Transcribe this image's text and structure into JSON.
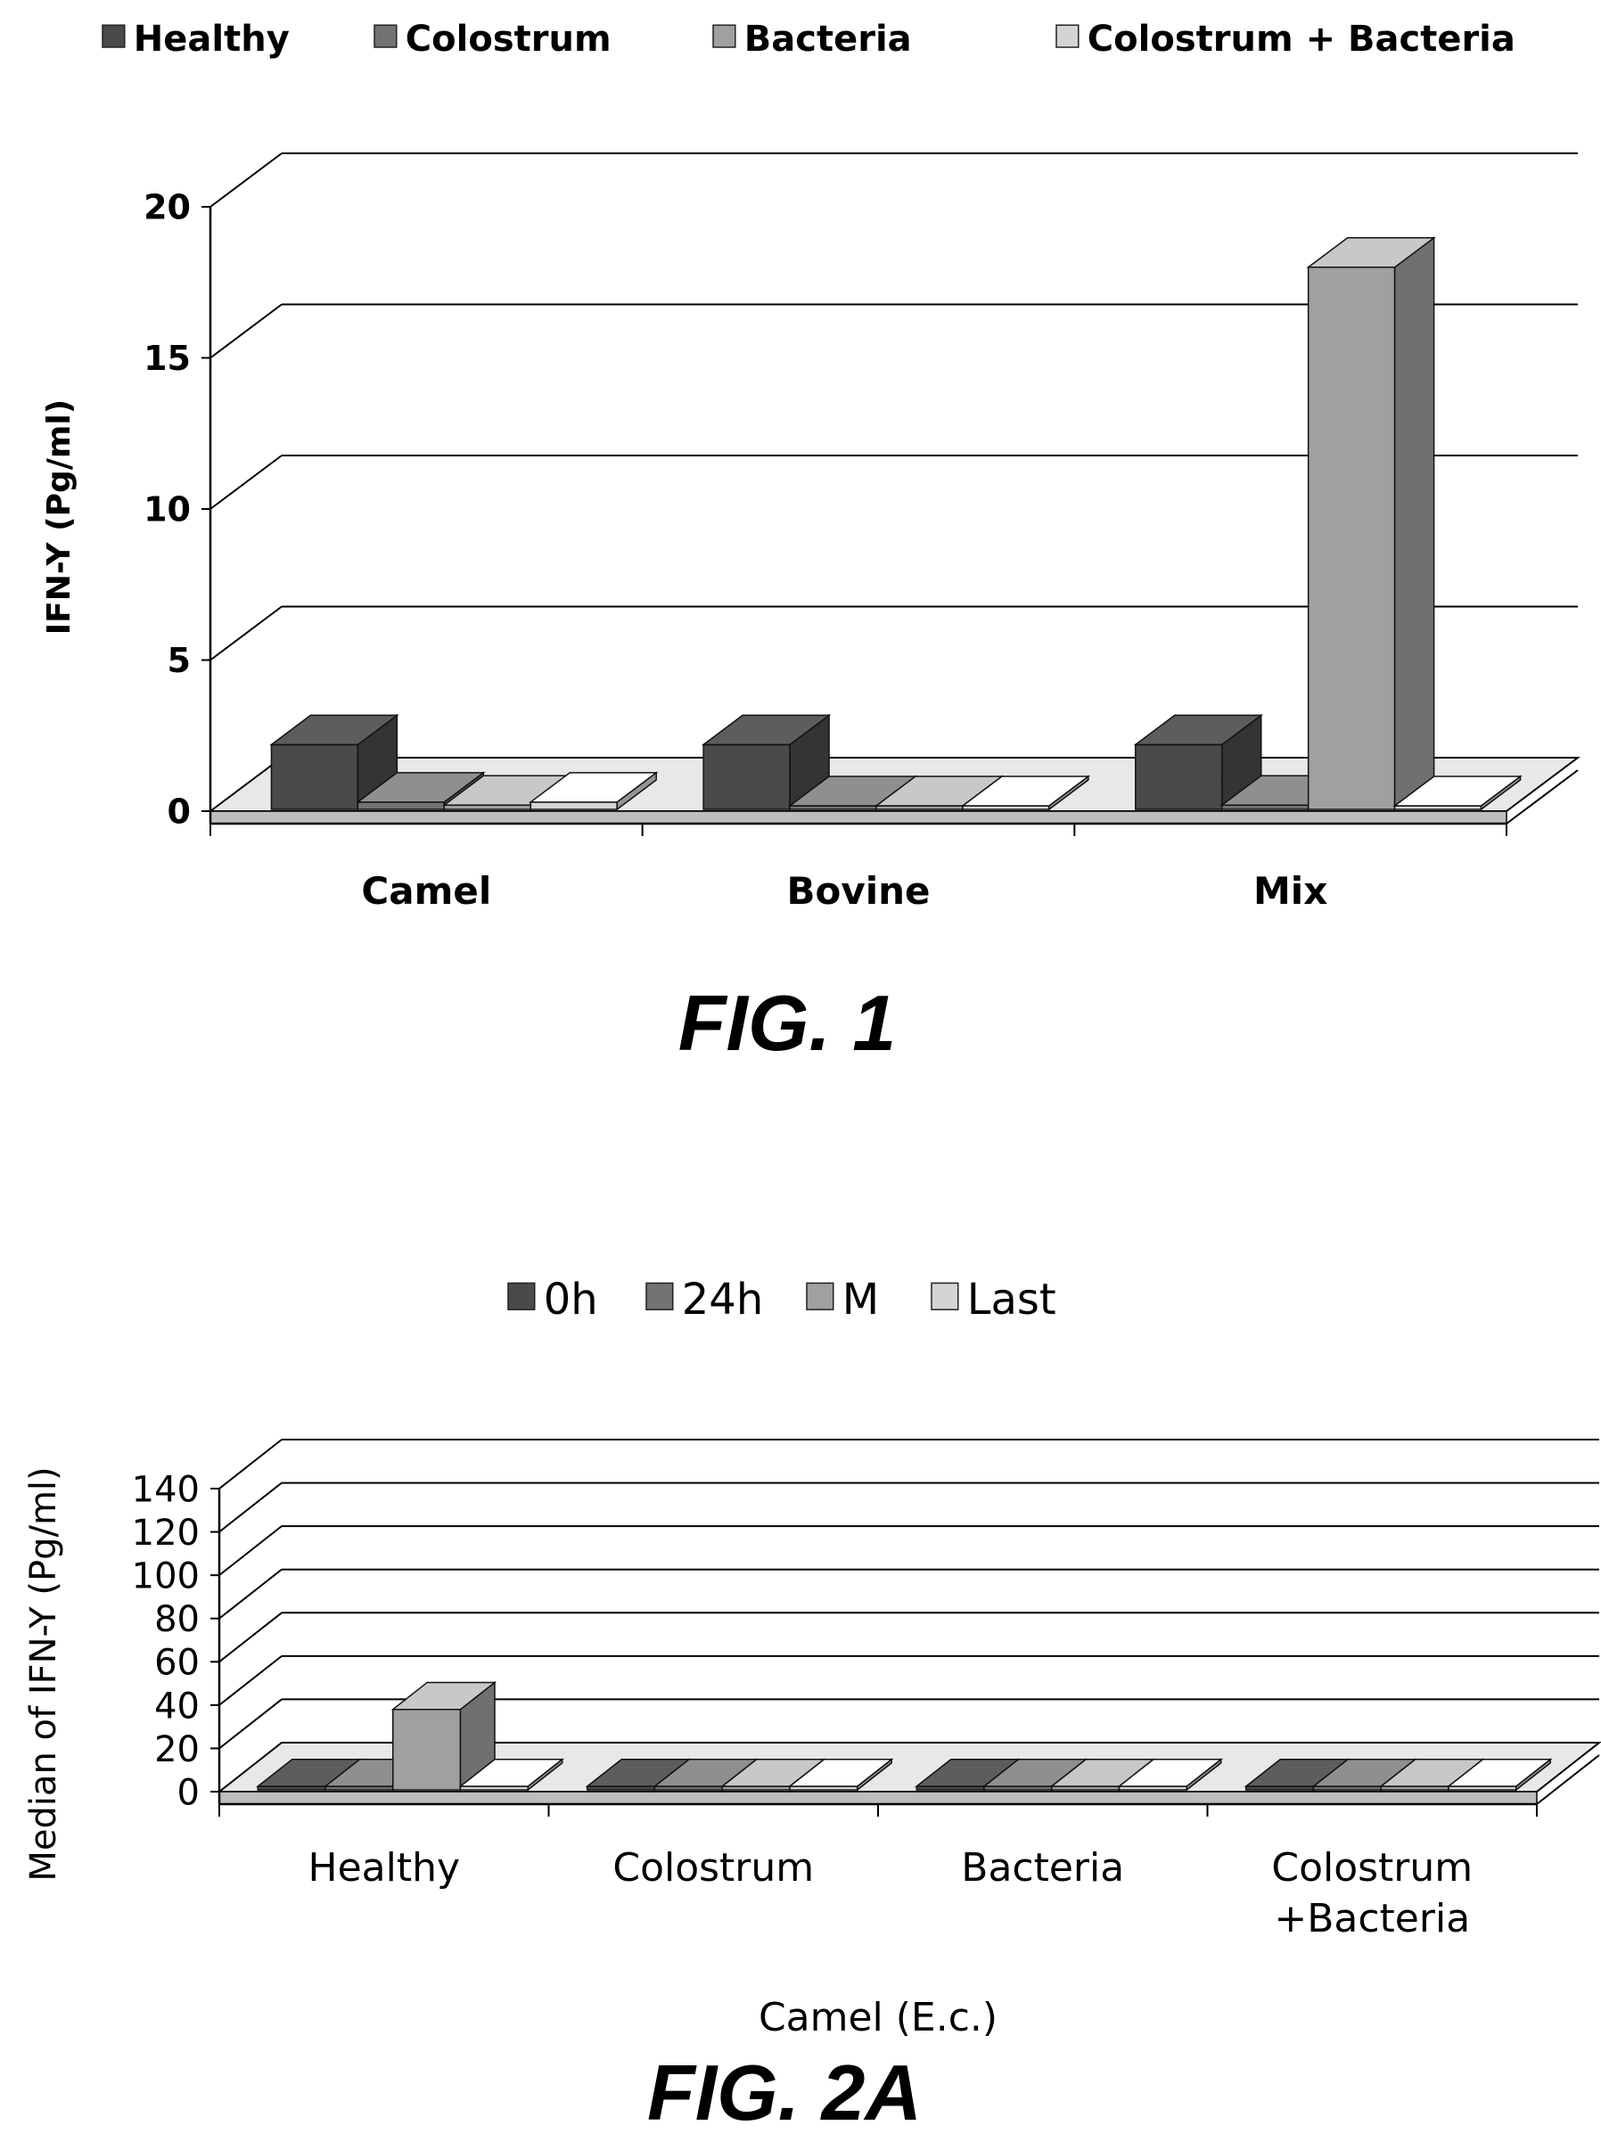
{
  "chart_data": [
    {
      "type": "bar",
      "caption": "FIG. 1",
      "categories": [
        "Camel",
        "Bovine",
        "Mix"
      ],
      "series": [
        {
          "name": "Healthy",
          "values": [
            2.2,
            2.2,
            2.2
          ]
        },
        {
          "name": "Colostrum",
          "values": [
            0.3,
            0,
            0.2
          ]
        },
        {
          "name": "Bacteria",
          "values": [
            0.2,
            0,
            18
          ]
        },
        {
          "name": "Colostrum + Bacteria",
          "values": [
            0.3,
            0,
            0
          ]
        }
      ],
      "xlabel": "",
      "ylabel": "IFN-Y (Pg/ml)",
      "ylim": [
        0,
        20
      ],
      "yticks": [
        "0",
        "5",
        "10",
        "15",
        "20"
      ],
      "grid": true,
      "legend": "top",
      "three_d": true
    },
    {
      "type": "bar",
      "caption": "FIG. 2A",
      "categories": [
        "Healthy",
        "Colostrum",
        "Bacteria",
        "Colostrum +Bacteria"
      ],
      "category_lines": [
        [
          "Healthy"
        ],
        [
          "Colostrum"
        ],
        [
          "Bacteria"
        ],
        [
          "Colostrum",
          "+Bacteria"
        ]
      ],
      "series": [
        {
          "name": "0h",
          "values": [
            0,
            0,
            0,
            0
          ]
        },
        {
          "name": "24h",
          "values": [
            1,
            0,
            0,
            0
          ]
        },
        {
          "name": "M",
          "values": [
            38,
            0,
            0,
            0
          ]
        },
        {
          "name": "Last",
          "values": [
            0,
            0,
            0,
            0
          ]
        }
      ],
      "xlabel": "Camel (E.c.)",
      "ylabel": "Median of IFN-Y (Pg/ml)",
      "ylim": [
        0,
        140
      ],
      "yticks": [
        "0",
        "20",
        "40",
        "60",
        "80",
        "100",
        "120",
        "140"
      ],
      "grid": true,
      "legend": "top",
      "three_d": true
    }
  ],
  "colors": {
    "series": [
      "#4a4a4a",
      "#727272",
      "#a0a0a0",
      "#d4d4d4"
    ],
    "grid": "#000000"
  }
}
